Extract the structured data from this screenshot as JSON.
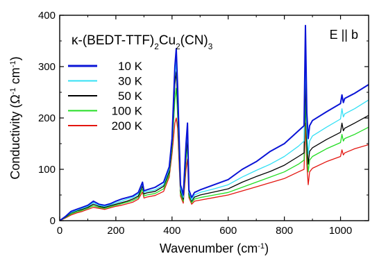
{
  "chart_data": {
    "type": "line",
    "title": "",
    "xlabel": "Wavenumber (cm⁻¹)",
    "ylabel": "Conductivity (Ω⁻¹ cm⁻¹)",
    "xlim": [
      0,
      1100
    ],
    "ylim": [
      0,
      400
    ],
    "x_ticks": [
      0,
      200,
      400,
      600,
      800,
      1000
    ],
    "y_ticks": [
      0,
      100,
      200,
      300,
      400
    ],
    "grid": false,
    "legend_position": "top-left",
    "annotations": {
      "sample": "κ-(BEDT-TTF)2Cu2(CN)3",
      "polarization": "E || b"
    },
    "x": [
      0,
      20,
      40,
      60,
      80,
      100,
      120,
      140,
      160,
      180,
      200,
      220,
      240,
      260,
      280,
      295,
      300,
      310,
      340,
      370,
      390,
      400,
      410,
      415,
      420,
      430,
      440,
      450,
      455,
      460,
      470,
      480,
      500,
      550,
      600,
      650,
      700,
      750,
      800,
      850,
      870,
      875,
      880,
      885,
      890,
      900,
      950,
      1000,
      1005,
      1010,
      1015,
      1050,
      1100
    ],
    "series": [
      {
        "name": "10 K",
        "color": "#0a14d6",
        "values": [
          0,
          8,
          18,
          22,
          26,
          30,
          38,
          32,
          30,
          33,
          38,
          42,
          45,
          48,
          55,
          75,
          58,
          60,
          65,
          75,
          105,
          160,
          300,
          335,
          260,
          70,
          50,
          150,
          190,
          60,
          45,
          55,
          60,
          70,
          80,
          100,
          115,
          135,
          150,
          175,
          185,
          380,
          210,
          160,
          185,
          195,
          212,
          228,
          245,
          230,
          238,
          248,
          265
        ]
      },
      {
        "name": "30 K",
        "color": "#33e0f5",
        "values": [
          0,
          8,
          16,
          20,
          24,
          28,
          35,
          30,
          28,
          31,
          35,
          38,
          42,
          45,
          52,
          72,
          55,
          57,
          60,
          70,
          100,
          155,
          280,
          310,
          240,
          62,
          45,
          140,
          175,
          55,
          40,
          50,
          55,
          62,
          70,
          85,
          98,
          110,
          125,
          145,
          155,
          320,
          175,
          130,
          155,
          165,
          182,
          198,
          218,
          202,
          208,
          218,
          235
        ]
      },
      {
        "name": "50 K",
        "color": "#000000",
        "values": [
          0,
          7,
          15,
          19,
          22,
          26,
          32,
          28,
          26,
          29,
          32,
          35,
          38,
          42,
          48,
          68,
          52,
          54,
          57,
          67,
          95,
          150,
          265,
          290,
          225,
          58,
          42,
          130,
          160,
          52,
          38,
          46,
          50,
          56,
          62,
          75,
          86,
          96,
          108,
          125,
          132,
          280,
          150,
          110,
          135,
          142,
          158,
          172,
          190,
          175,
          180,
          190,
          205
        ]
      },
      {
        "name": "100 K",
        "color": "#22dd22",
        "values": [
          0,
          6,
          13,
          17,
          20,
          24,
          29,
          26,
          24,
          27,
          30,
          33,
          36,
          39,
          45,
          62,
          48,
          50,
          53,
          62,
          90,
          140,
          235,
          258,
          205,
          52,
          38,
          118,
          145,
          48,
          35,
          42,
          45,
          50,
          55,
          65,
          75,
          85,
          95,
          110,
          118,
          240,
          130,
          95,
          118,
          125,
          140,
          152,
          168,
          155,
          160,
          168,
          182
        ]
      },
      {
        "name": "200 K",
        "color": "#e3150f",
        "values": [
          0,
          5,
          11,
          15,
          18,
          22,
          26,
          24,
          22,
          25,
          28,
          30,
          33,
          36,
          42,
          56,
          44,
          46,
          49,
          57,
          85,
          130,
          190,
          200,
          180,
          48,
          34,
          100,
          120,
          45,
          32,
          38,
          40,
          45,
          50,
          58,
          66,
          74,
          82,
          95,
          100,
          190,
          110,
          70,
          95,
          102,
          115,
          125,
          138,
          128,
          132,
          140,
          148
        ]
      }
    ]
  }
}
